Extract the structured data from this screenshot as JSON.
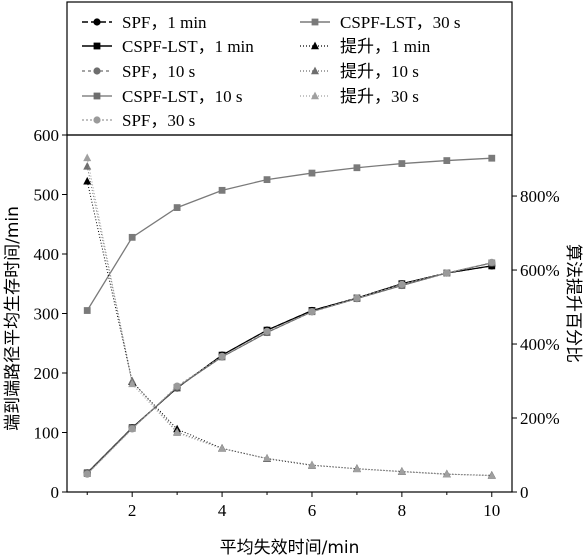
{
  "chart_data": {
    "type": "line",
    "xlabel": "平均失效时间/min",
    "ylabel_left": "端到端路径平均生存时间/min",
    "ylabel_right": "算法提升百分比",
    "x_ticks": [
      2,
      4,
      6,
      8,
      10
    ],
    "left_ticks": [
      0,
      100,
      200,
      300,
      400,
      500,
      600
    ],
    "right_ticks": [
      "0",
      "200%",
      "400%",
      "600%",
      "800%"
    ],
    "right_tick_values": [
      0,
      200,
      400,
      600,
      800
    ],
    "xlim": [
      0.55,
      10.45
    ],
    "ylim_left": [
      0,
      600
    ],
    "ylim_right": [
      0,
      965
    ],
    "grid": false,
    "legend_position": "top",
    "series": [
      {
        "name": "SPF，1 min",
        "axis": "left",
        "color": "#000000",
        "dash": "6,3",
        "width": 1.2,
        "marker": "circle",
        "x": [
          1,
          2,
          3,
          4,
          5,
          6,
          7,
          8,
          9,
          10
        ],
        "values": [
          32,
          108,
          175,
          230,
          272,
          305,
          326,
          350,
          368,
          380
        ]
      },
      {
        "name": "CSPF-LST，1 min",
        "axis": "left",
        "color": "#000000",
        "dash": "",
        "width": 1.2,
        "marker": "square",
        "x": [
          1,
          2,
          3,
          4,
          5,
          6,
          7,
          8,
          9,
          10
        ],
        "values": [
          32,
          108,
          175,
          230,
          272,
          305,
          326,
          350,
          368,
          380
        ]
      },
      {
        "name": "SPF，10 s",
        "axis": "left",
        "color": "#6e6e6e",
        "dash": "3,3",
        "width": 1.1,
        "marker": "circle",
        "x": [
          1,
          2,
          3,
          4,
          5,
          6,
          7,
          8,
          9,
          10
        ],
        "values": [
          31,
          107,
          176,
          227,
          268,
          303,
          325,
          347,
          368,
          385
        ]
      },
      {
        "name": "CSPF-LST，10 s",
        "axis": "left",
        "color": "#6e6e6e",
        "dash": "",
        "width": 1.1,
        "marker": "square",
        "x": [
          1,
          2,
          3,
          4,
          5,
          6,
          7,
          8,
          9,
          10
        ],
        "values": [
          31,
          107,
          176,
          227,
          268,
          303,
          325,
          347,
          368,
          385
        ]
      },
      {
        "name": "SPF，30 s",
        "axis": "left",
        "color": "#9a9a9a",
        "dash": "2,2",
        "width": 1.0,
        "marker": "circle",
        "x": [
          1,
          2,
          3,
          4,
          5,
          6,
          7,
          8,
          9,
          10
        ],
        "values": [
          30,
          106,
          178,
          228,
          270,
          303,
          326,
          349,
          368,
          386
        ]
      },
      {
        "name": "CSPF-LST，30 s",
        "axis": "left",
        "color": "#7a7a7a",
        "dash": "",
        "width": 1.3,
        "marker": "square",
        "x": [
          1,
          2,
          3,
          4,
          5,
          6,
          7,
          8,
          9,
          10
        ],
        "values": [
          305,
          428,
          478,
          507,
          525,
          536,
          545,
          552,
          557,
          561
        ]
      },
      {
        "name": "提升，1 min",
        "axis": "right",
        "color": "#000000",
        "dash": "1,2",
        "width": 1.0,
        "marker": "triangle",
        "x": [
          1,
          2,
          3,
          4,
          5,
          6,
          7,
          8,
          9,
          10
        ],
        "values": [
          840,
          298,
          170,
          118,
          90,
          72,
          63,
          55,
          48,
          45
        ]
      },
      {
        "name": "提升，10 s",
        "axis": "right",
        "color": "#6e6e6e",
        "dash": "1,2",
        "width": 1.0,
        "marker": "triangle",
        "x": [
          1,
          2,
          3,
          4,
          5,
          6,
          7,
          8,
          9,
          10
        ],
        "values": [
          880,
          300,
          162,
          118,
          91,
          73,
          63,
          56,
          49,
          44
        ]
      },
      {
        "name": "提升，30 s",
        "axis": "right",
        "color": "#a0a0a0",
        "dash": "1,2",
        "width": 1.0,
        "marker": "triangle",
        "x": [
          1,
          2,
          3,
          4,
          5,
          6,
          7,
          8,
          9,
          10
        ],
        "values": [
          903,
          292,
          160,
          117,
          91,
          73,
          62,
          55,
          48,
          44
        ]
      }
    ]
  }
}
